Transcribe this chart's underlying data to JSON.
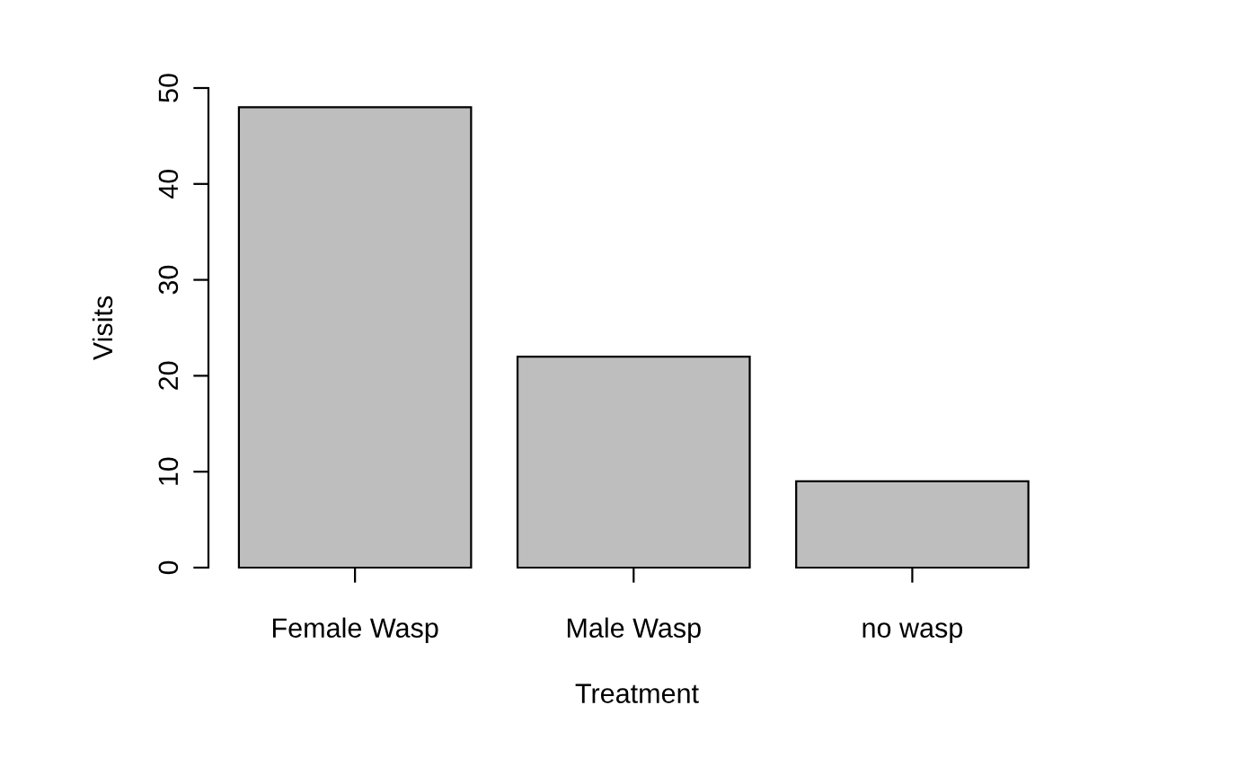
{
  "chart_data": {
    "type": "bar",
    "xlabel": "Treatment",
    "ylabel": "Visits",
    "categories": [
      "Female Wasp",
      "Male Wasp",
      "no wasp"
    ],
    "values": [
      48,
      22,
      9
    ],
    "color": "#bebebe",
    "ylim": [
      0,
      50
    ],
    "yticks": [
      0,
      10,
      20,
      30,
      40,
      50
    ],
    "grid": false,
    "legend": false
  }
}
